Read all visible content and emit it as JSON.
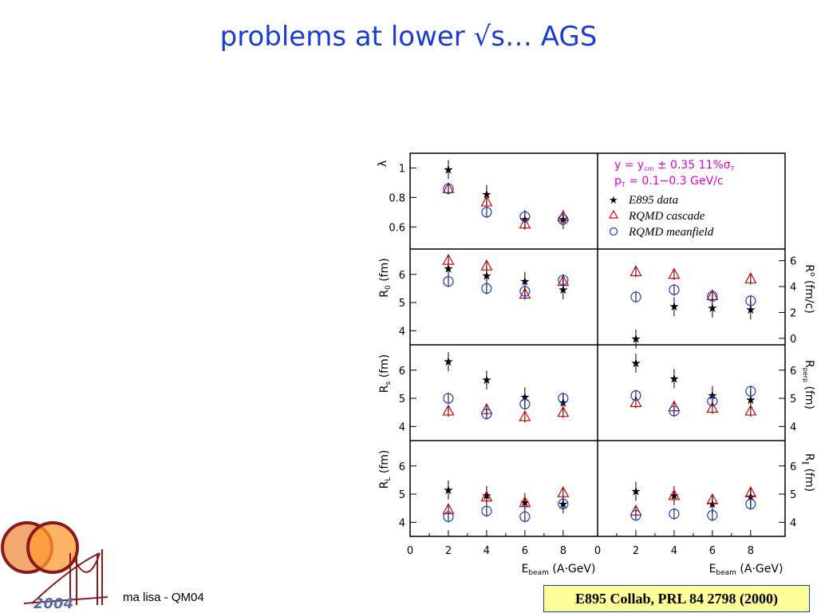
{
  "slide": {
    "title": "problems at lower √s… AGS",
    "footer_author": "ma lisa - QM04",
    "citation": "E895 Collab, PRL 84 2798 (2000)",
    "logo_year": "2004"
  },
  "colors": {
    "title": "#1a3cd6",
    "rqmd_cascade": "#e00000",
    "rqmd_meanfield": "#1a3cd6",
    "e895": "#000000",
    "cut_text": "#e000e0",
    "citation_bg": "#ffff99"
  },
  "chart_data": {
    "type": "scatter",
    "cuts": [
      "y = y_cm ± 0.35   11%σ_T",
      "p_T = 0.1−0.3 GeV/c"
    ],
    "legend": [
      "E895 data",
      "RQMD cascade",
      "RQMD meanfield"
    ],
    "xlabel": "E_beam (A·GeV)",
    "x_ticks": [
      "0",
      "2",
      "4",
      "6",
      "8"
    ],
    "x": [
      2,
      4,
      6,
      8
    ],
    "panels": [
      {
        "id": "lambda",
        "ylabel": "λ",
        "ylim": [
          0.45,
          1.1
        ],
        "yticks": [
          "0.6",
          "0.8",
          "1"
        ],
        "ytick_values": [
          0.6,
          0.8,
          1.0
        ],
        "series": [
          {
            "name": "E895 data",
            "values": [
              0.99,
              0.82,
              0.65,
              0.65
            ]
          },
          {
            "name": "RQMD cascade",
            "values": [
              0.86,
              0.77,
              0.62,
              0.67
            ]
          },
          {
            "name": "RQMD meanfield",
            "values": [
              0.86,
              0.7,
              0.67,
              0.65
            ]
          }
        ]
      },
      {
        "id": "r0",
        "ylabel": "R0 (fm)",
        "ylim": [
          3.5,
          6.9
        ],
        "yticks": [
          "4",
          "5",
          "6"
        ],
        "ytick_values": [
          4,
          5,
          6
        ],
        "series": [
          {
            "name": "E895 data",
            "values": [
              6.2,
              5.95,
              5.75,
              5.45
            ]
          },
          {
            "name": "RQMD cascade",
            "values": [
              6.5,
              6.3,
              5.3,
              5.75
            ]
          },
          {
            "name": "RQMD meanfield",
            "values": [
              5.75,
              5.5,
              5.4,
              5.8
            ]
          }
        ]
      },
      {
        "id": "r0-dot",
        "ylabel": "R° (fm/c)",
        "ylim": [
          -0.5,
          6.9
        ],
        "yticks": [
          "0",
          "2",
          "4",
          "6"
        ],
        "ytick_values": [
          0,
          2,
          4,
          6
        ],
        "series": [
          {
            "name": "E895 data",
            "values": [
              -0.05,
              2.45,
              2.35,
              2.2
            ]
          },
          {
            "name": "RQMD cascade",
            "values": [
              5.15,
              4.95,
              3.3,
              4.6
            ]
          },
          {
            "name": "RQMD meanfield",
            "values": [
              3.2,
              3.75,
              3.25,
              2.9
            ]
          }
        ]
      },
      {
        "id": "rs",
        "ylabel": "Rs (fm)",
        "ylim": [
          3.5,
          6.9
        ],
        "yticks": [
          "4",
          "5",
          "6"
        ],
        "ytick_values": [
          4,
          5,
          6
        ],
        "series": [
          {
            "name": "E895 data",
            "values": [
              6.3,
              5.65,
              5.05,
              4.85
            ]
          },
          {
            "name": "RQMD cascade",
            "values": [
              4.55,
              4.6,
              4.35,
              4.5
            ]
          },
          {
            "name": "RQMD meanfield",
            "values": [
              5.0,
              4.45,
              4.8,
              5.0
            ]
          }
        ]
      },
      {
        "id": "rperp",
        "ylabel": "Rperp (fm)",
        "ylim": [
          3.5,
          6.9
        ],
        "yticks": [
          "4",
          "5",
          "6"
        ],
        "ytick_values": [
          4,
          5,
          6
        ],
        "series": [
          {
            "name": "E895 data",
            "values": [
              6.25,
              5.7,
              5.1,
              4.95
            ]
          },
          {
            "name": "RQMD cascade",
            "values": [
              4.85,
              4.7,
              4.65,
              4.55
            ]
          },
          {
            "name": "RQMD meanfield",
            "values": [
              5.1,
              4.55,
              4.9,
              5.25
            ]
          }
        ]
      },
      {
        "id": "rl",
        "ylabel": "RL (fm)",
        "ylim": [
          3.5,
          6.9
        ],
        "yticks": [
          "4",
          "5",
          "6"
        ],
        "ytick_values": [
          4,
          5,
          6
        ],
        "series": [
          {
            "name": "E895 data",
            "values": [
              5.15,
              4.95,
              4.7,
              4.65
            ]
          },
          {
            "name": "RQMD cascade",
            "values": [
              4.45,
              4.9,
              4.7,
              5.05
            ]
          },
          {
            "name": "RQMD meanfield",
            "values": [
              4.2,
              4.4,
              4.2,
              4.65
            ]
          }
        ]
      },
      {
        "id": "rpar",
        "ylabel": "R∥ (fm)",
        "ylim": [
          3.5,
          6.9
        ],
        "yticks": [
          "4",
          "5",
          "6"
        ],
        "ytick_values": [
          4,
          5,
          6
        ],
        "series": [
          {
            "name": "E895 data",
            "values": [
              5.1,
              4.95,
              4.65,
              4.9
            ]
          },
          {
            "name": "RQMD cascade",
            "values": [
              4.4,
              4.95,
              4.8,
              5.05
            ]
          },
          {
            "name": "RQMD meanfield",
            "values": [
              4.25,
              4.3,
              4.25,
              4.65
            ]
          }
        ]
      }
    ]
  }
}
